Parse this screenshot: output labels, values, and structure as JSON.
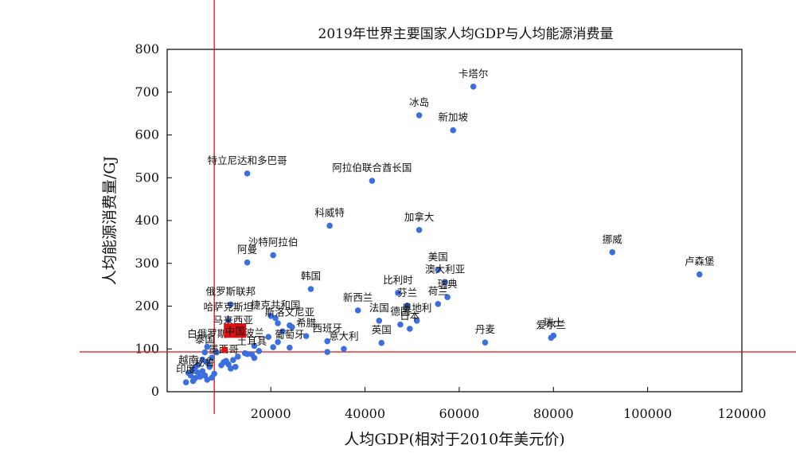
{
  "chart_data": {
    "type": "scatter",
    "title": "2019年世界主要国家人均GDP与人均能源消费量",
    "xlabel": "人均GDP(相对于2010年美元价)",
    "ylabel": "人均能源消费量/GJ",
    "xlim": [
      -2000,
      120000
    ],
    "ylim": [
      0,
      800
    ],
    "x_ticks": [
      20000,
      40000,
      60000,
      80000,
      100000,
      120000
    ],
    "y_ticks": [
      0,
      100,
      200,
      300,
      400,
      500,
      600,
      700,
      800
    ],
    "grid": false,
    "point_color": "#3b6fe0",
    "reference_line_color": "#e01010",
    "highlight_color": "#e01010",
    "reference_lines": {
      "x": 8000,
      "y": 93
    },
    "highlight": {
      "label": "中国",
      "x": 10200,
      "y": 98
    },
    "labeled_points": [
      {
        "label": "卡塔尔",
        "x": 63000,
        "y": 713
      },
      {
        "label": "冰岛",
        "x": 51500,
        "y": 646
      },
      {
        "label": "新加坡",
        "x": 58700,
        "y": 611
      },
      {
        "label": "特立尼达和多巴哥",
        "x": 15000,
        "y": 510
      },
      {
        "label": "阿拉伯联合酋长国",
        "x": 41500,
        "y": 493
      },
      {
        "label": "科威特",
        "x": 32500,
        "y": 388
      },
      {
        "label": "加拿大",
        "x": 51500,
        "y": 378
      },
      {
        "label": "沙特阿拉伯",
        "x": 20500,
        "y": 319
      },
      {
        "label": "阿曼",
        "x": 15000,
        "y": 302
      },
      {
        "label": "挪威",
        "x": 92500,
        "y": 326
      },
      {
        "label": "卢森堡",
        "x": 111000,
        "y": 274
      },
      {
        "label": "美国",
        "x": 55500,
        "y": 285
      },
      {
        "label": "澳大利亚",
        "x": 57000,
        "y": 256
      },
      {
        "label": "瑞典",
        "x": 57500,
        "y": 221
      },
      {
        "label": "荷兰",
        "x": 55500,
        "y": 205
      },
      {
        "label": "韩国",
        "x": 28500,
        "y": 240
      },
      {
        "label": "比利时",
        "x": 47000,
        "y": 231
      },
      {
        "label": "芬兰",
        "x": 49000,
        "y": 201
      },
      {
        "label": "奥地利",
        "x": 51000,
        "y": 166
      },
      {
        "label": "德国",
        "x": 47500,
        "y": 157
      },
      {
        "label": "日本",
        "x": 49500,
        "y": 147
      },
      {
        "label": "新西兰",
        "x": 38500,
        "y": 190
      },
      {
        "label": "法国",
        "x": 43000,
        "y": 166
      },
      {
        "label": "英国",
        "x": 43500,
        "y": 114
      },
      {
        "label": "俄罗斯联邦",
        "x": 11500,
        "y": 204
      },
      {
        "label": "哈萨克斯坦",
        "x": 11000,
        "y": 167
      },
      {
        "label": "捷克共和国",
        "x": 21000,
        "y": 172
      },
      {
        "label": "斯洛文尼亚",
        "x": 24000,
        "y": 155
      },
      {
        "label": "希腊",
        "x": 27500,
        "y": 130
      },
      {
        "label": "西班牙",
        "x": 32000,
        "y": 118
      },
      {
        "label": "意大利",
        "x": 35500,
        "y": 100
      },
      {
        "label": "葡萄牙",
        "x": 24000,
        "y": 103
      },
      {
        "label": "马来西亚",
        "x": 12000,
        "y": 137
      },
      {
        "label": "波兰",
        "x": 16500,
        "y": 107
      },
      {
        "label": "土耳其",
        "x": 16000,
        "y": 87
      },
      {
        "label": "白俄罗斯",
        "x": 6500,
        "y": 105
      },
      {
        "label": "泰国",
        "x": 6000,
        "y": 92
      },
      {
        "label": "墨西哥",
        "x": 10000,
        "y": 69
      },
      {
        "label": "丹麦",
        "x": 65500,
        "y": 115
      },
      {
        "label": "爱尔兰",
        "x": 79500,
        "y": 126
      },
      {
        "label": "瑞士",
        "x": 80000,
        "y": 131
      },
      {
        "label": "越南",
        "x": 2500,
        "y": 44
      },
      {
        "label": "秘鲁",
        "x": 6000,
        "y": 38
      },
      {
        "label": "印度",
        "x": 2000,
        "y": 22
      }
    ],
    "unlabeled_points": [
      {
        "x": 20000,
        "y": 177
      },
      {
        "x": 21500,
        "y": 160
      },
      {
        "x": 24500,
        "y": 151
      },
      {
        "x": 22500,
        "y": 141
      },
      {
        "x": 19500,
        "y": 128
      },
      {
        "x": 21500,
        "y": 116
      },
      {
        "x": 20500,
        "y": 104
      },
      {
        "x": 17500,
        "y": 95
      },
      {
        "x": 15000,
        "y": 88
      },
      {
        "x": 13000,
        "y": 82
      },
      {
        "x": 16500,
        "y": 79
      },
      {
        "x": 12000,
        "y": 74
      },
      {
        "x": 11000,
        "y": 64
      },
      {
        "x": 12500,
        "y": 58
      },
      {
        "x": 11500,
        "y": 54
      },
      {
        "x": 14500,
        "y": 90
      },
      {
        "x": 32000,
        "y": 93
      },
      {
        "x": 7500,
        "y": 80
      },
      {
        "x": 5500,
        "y": 75
      },
      {
        "x": 6500,
        "y": 68
      },
      {
        "x": 4500,
        "y": 62
      },
      {
        "x": 7000,
        "y": 58
      },
      {
        "x": 3500,
        "y": 52
      },
      {
        "x": 4500,
        "y": 45
      },
      {
        "x": 5500,
        "y": 48
      },
      {
        "x": 3000,
        "y": 38
      },
      {
        "x": 8000,
        "y": 42
      },
      {
        "x": 4000,
        "y": 32
      },
      {
        "x": 6500,
        "y": 28
      },
      {
        "x": 3500,
        "y": 25
      },
      {
        "x": 7500,
        "y": 33
      },
      {
        "x": 5000,
        "y": 35
      },
      {
        "x": 9500,
        "y": 62
      },
      {
        "x": 8500,
        "y": 92
      },
      {
        "x": 10500,
        "y": 72
      },
      {
        "x": 4000,
        "y": 58
      }
    ]
  }
}
